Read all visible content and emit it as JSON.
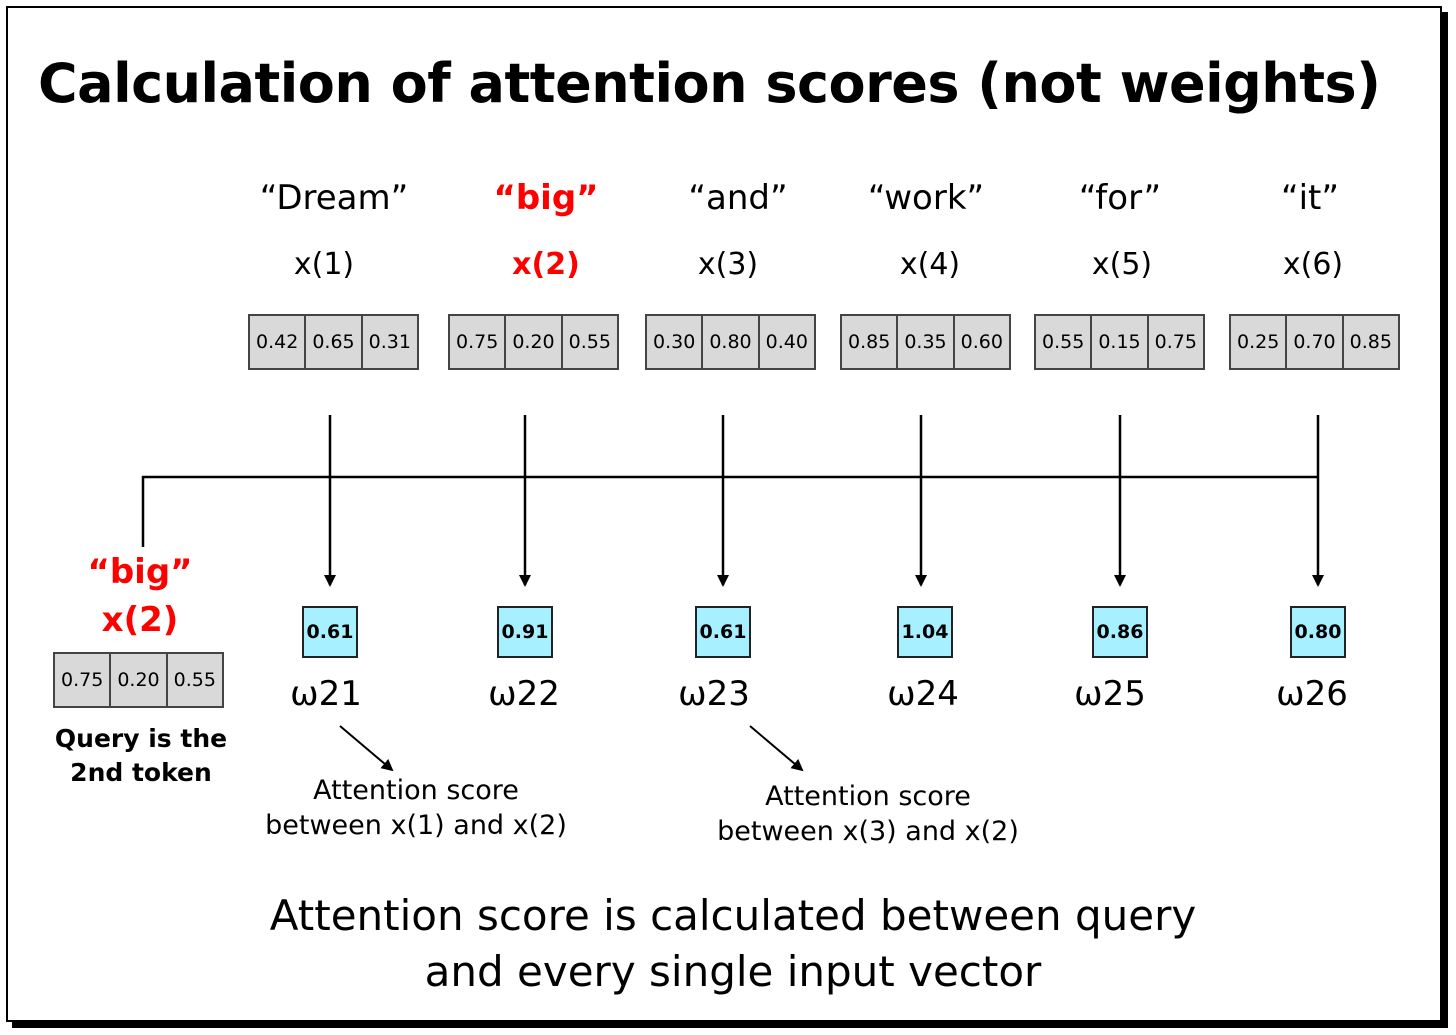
{
  "title": "Calculation of attention scores (not weights)",
  "tokens": [
    {
      "word": "“Dream”",
      "label": "x(1)",
      "vector": [
        "0.42",
        "0.65",
        "0.31"
      ],
      "score": "0.61",
      "omega": "ω21"
    },
    {
      "word": "“big”",
      "label": "x(2)",
      "vector": [
        "0.75",
        "0.20",
        "0.55"
      ],
      "score": "0.91",
      "omega": "ω22"
    },
    {
      "word": "“and”",
      "label": "x(3)",
      "vector": [
        "0.30",
        "0.80",
        "0.40"
      ],
      "score": "0.61",
      "omega": "ω23"
    },
    {
      "word": "“work”",
      "label": "x(4)",
      "vector": [
        "0.85",
        "0.35",
        "0.60"
      ],
      "score": "1.04",
      "omega": "ω24"
    },
    {
      "word": "“for”",
      "label": "x(5)",
      "vector": [
        "0.55",
        "0.15",
        "0.75"
      ],
      "score": "0.86",
      "omega": "ω25"
    },
    {
      "word": "“it”",
      "label": "x(6)",
      "vector": [
        "0.25",
        "0.70",
        "0.85"
      ],
      "score": "0.80",
      "omega": "ω26"
    }
  ],
  "highlighted_token_index": 1,
  "highlight_color": "#ff0000",
  "score_box_color": "#a6f0ff",
  "vector_box_color": "#d9d9d9",
  "query": {
    "word": "“big”",
    "label": "x(2)",
    "vector": [
      "0.75",
      "0.20",
      "0.55"
    ],
    "caption_line1": "Query is the",
    "caption_line2": "2nd token"
  },
  "notes": [
    {
      "line1": "Attention score",
      "line2": "between x(1) and x(2)"
    },
    {
      "line1": "Attention score",
      "line2": "between x(3) and x(2)"
    }
  ],
  "bottom_text": {
    "line1": "Attention score is calculated between query",
    "line2": "and every single input vector"
  }
}
